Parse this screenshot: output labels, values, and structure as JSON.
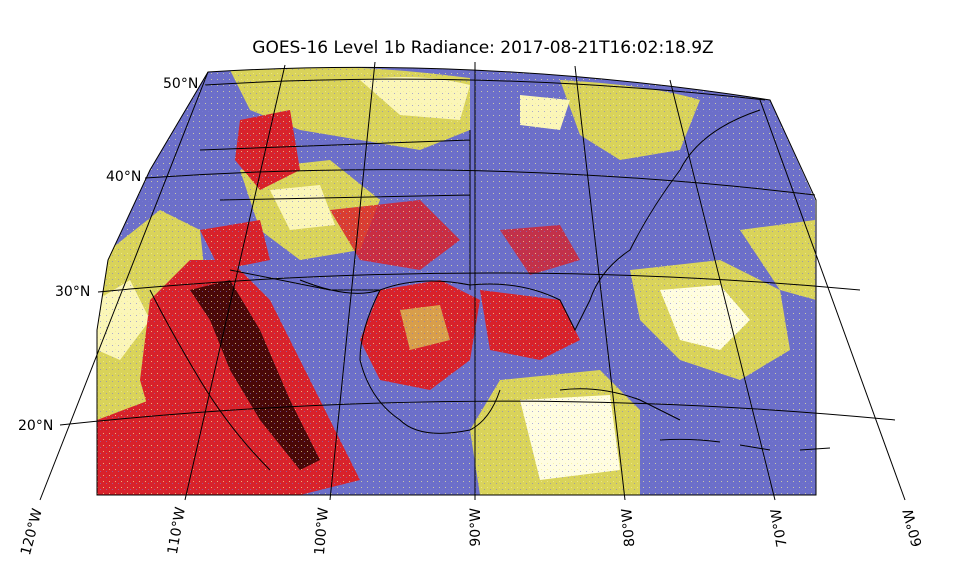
{
  "title": "GOES-16 Level 1b Radiance: 2017-08-21T16:02:18.9Z",
  "map": {
    "projection": "lambert-conformal",
    "extent": {
      "lon_min": -120,
      "lon_max": -60,
      "lat_min": 14,
      "lat_max": 52
    },
    "latitude_labels": [
      "50°N",
      "40°N",
      "30°N",
      "20°N"
    ],
    "longitude_labels": [
      "120°W",
      "110°W",
      "100°W",
      "90°W",
      "80°W",
      "70°W",
      "60°W"
    ],
    "colormap": {
      "cold_clouds": "#fffde0",
      "mid_clouds": "#d9d35a",
      "clear_ocean": "#6c6fc9",
      "clear_land": "#d8222b",
      "hot_land": "#4a0808",
      "boundaries": "#000000"
    }
  }
}
